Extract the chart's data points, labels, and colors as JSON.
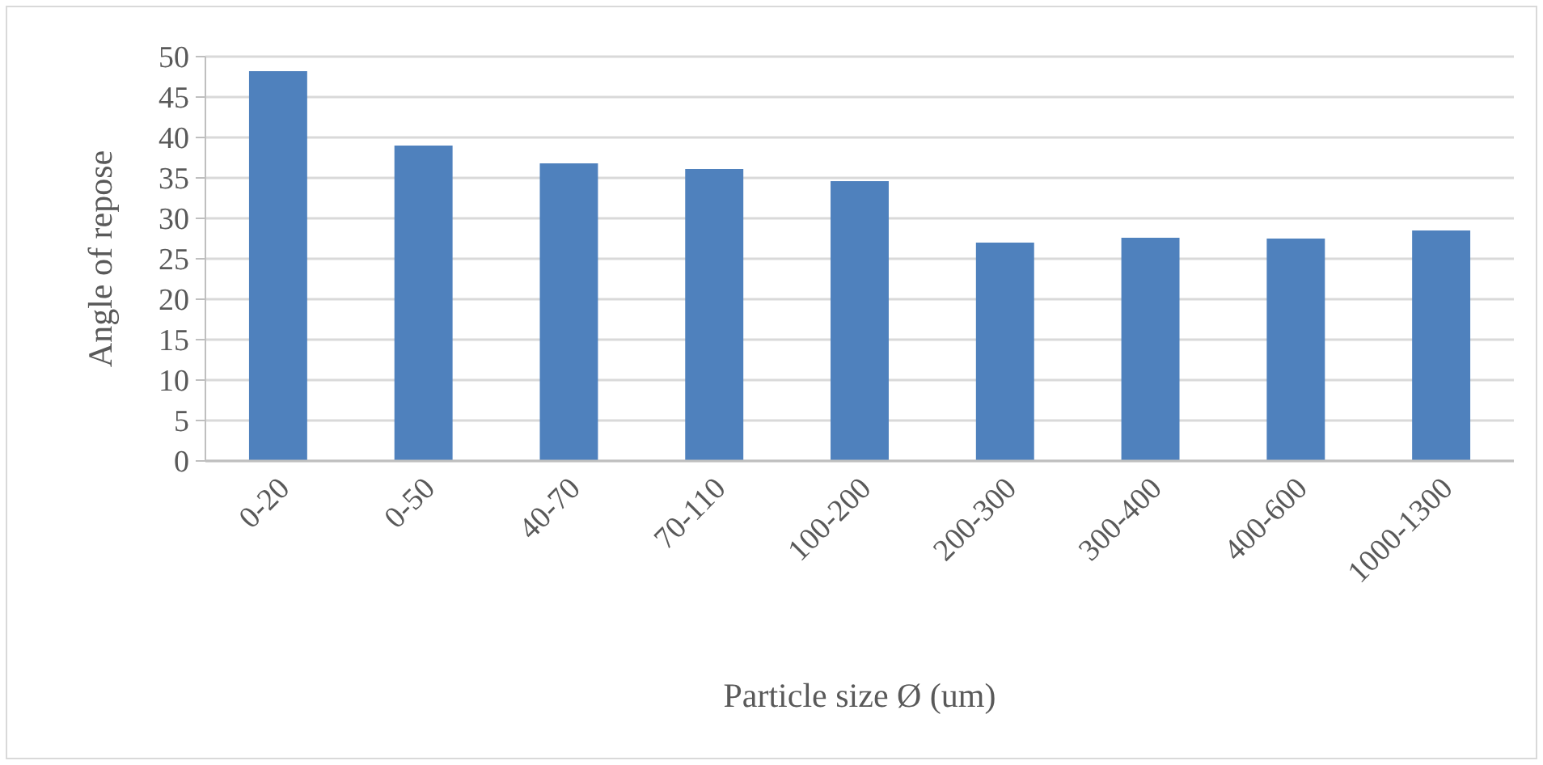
{
  "chart_data": {
    "type": "bar",
    "xlabel": "Particle size  Ø (um)",
    "ylabel": "Angle of repose",
    "categories": [
      "0-20",
      "0-50",
      "40-70",
      "70-110",
      "100-200",
      "200-300",
      "300-400",
      "400-600",
      "1000-1300"
    ],
    "values": [
      48.2,
      39,
      36.8,
      36.1,
      34.6,
      27,
      27.6,
      27.5,
      28.5
    ],
    "color": "#4f81bd",
    "ylim": [
      0,
      50
    ],
    "yticks": [
      0,
      5,
      10,
      15,
      20,
      25,
      30,
      35,
      40,
      45,
      50
    ],
    "grid": "y"
  }
}
